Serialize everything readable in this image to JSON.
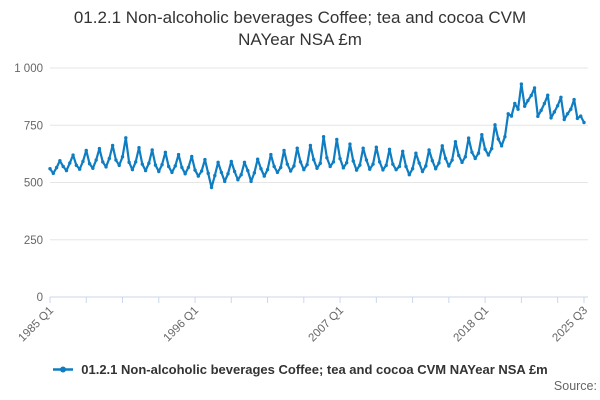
{
  "title": {
    "line1": "01.2.1 Non-alcoholic beverages Coffee; tea and cocoa CVM",
    "line2": "NAYear NSA £m"
  },
  "legend": {
    "label": "01.2.1 Non-alcoholic beverages Coffee; tea and cocoa CVM NAYear NSA £m"
  },
  "source_label": "Source:",
  "colors": {
    "series": "#0e7dc2",
    "grid": "#e6e6e6",
    "axis": "#ccd6eb",
    "tick_label": "#666666",
    "title_text": "#333333"
  },
  "chart_data": {
    "type": "line",
    "title": "01.2.1 Non-alcoholic beverages Coffee; tea and cocoa CVM NAYear NSA £m",
    "xlabel": "",
    "ylabel": "",
    "frequency": "quarterly",
    "x_start": "1985 Q1",
    "x_end": "2025 Q3",
    "ylim": [
      0,
      1000
    ],
    "grid": "horizontal",
    "legend_position": "bottom",
    "y_ticks": [
      {
        "value": 0,
        "label": "0"
      },
      {
        "value": 250,
        "label": "250"
      },
      {
        "value": 500,
        "label": "500"
      },
      {
        "value": 750,
        "label": "750"
      },
      {
        "value": 1000,
        "label": "1 000"
      }
    ],
    "x_labels": [
      {
        "q": 0,
        "label": "1985 Q1"
      },
      {
        "q": 44,
        "label": "1996 Q1"
      },
      {
        "q": 88,
        "label": "2007 Q1"
      },
      {
        "q": 132,
        "label": "2018 Q1"
      },
      {
        "q": 162,
        "label": "2025 Q3"
      }
    ],
    "tick_quarters": [
      0,
      11,
      22,
      33,
      44,
      55,
      66,
      77,
      88,
      99,
      110,
      121,
      132,
      143,
      154,
      162
    ],
    "series": [
      {
        "name": "01.2.1 Non-alcoholic beverages Coffee; tea and cocoa CVM NAYear NSA £m",
        "color": "#0e7dc2",
        "values": [
          560,
          540,
          565,
          595,
          570,
          552,
          585,
          620,
          575,
          558,
          592,
          640,
          582,
          562,
          598,
          648,
          590,
          568,
          605,
          662,
          598,
          575,
          612,
          695,
          588,
          556,
          590,
          652,
          580,
          552,
          584,
          642,
          576,
          548,
          578,
          632,
          570,
          544,
          572,
          622,
          566,
          538,
          566,
          614,
          554,
          528,
          550,
          600,
          540,
          478,
          530,
          588,
          544,
          505,
          538,
          592,
          548,
          512,
          534,
          588,
          552,
          505,
          542,
          602,
          560,
          528,
          556,
          622,
          570,
          544,
          566,
          640,
          580,
          550,
          572,
          650,
          590,
          556,
          578,
          662,
          600,
          562,
          584,
          700,
          608,
          570,
          590,
          688,
          604,
          564,
          586,
          668,
          594,
          554,
          576,
          650,
          598,
          558,
          580,
          654,
          590,
          555,
          575,
          645,
          580,
          556,
          570,
          636,
          570,
          534,
          560,
          628,
          585,
          548,
          572,
          642,
          595,
          560,
          585,
          660,
          605,
          572,
          598,
          678,
          618,
          588,
          612,
          694,
          632,
          605,
          628,
          709,
          645,
          620,
          648,
          752,
          690,
          660,
          700,
          800,
          790,
          845,
          820,
          930,
          833,
          858,
          880,
          913,
          789,
          815,
          845,
          881,
          782,
          808,
          835,
          872,
          775,
          800,
          820,
          862,
          780,
          790,
          762
        ]
      }
    ]
  }
}
